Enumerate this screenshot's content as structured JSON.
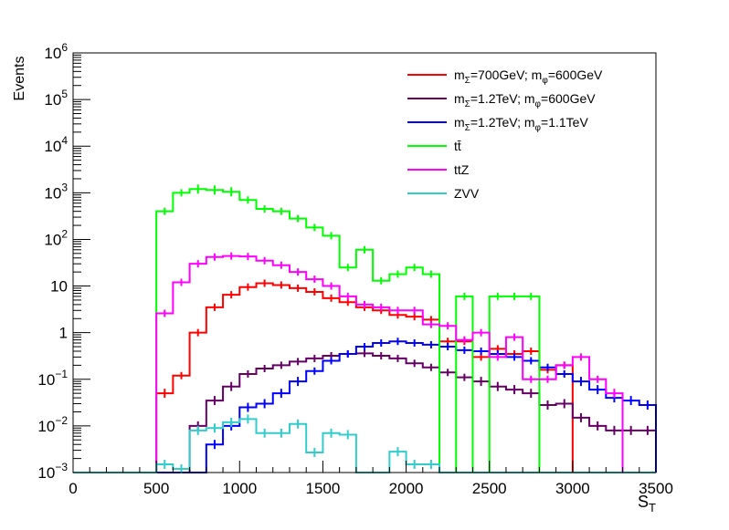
{
  "chart_data": {
    "type": "line",
    "ylabel": "Events",
    "xlabel_main": "S",
    "xlabel_sub": "T",
    "yscale": "log",
    "xlim": [
      0,
      3500
    ],
    "ylim": [
      0.001,
      1000000
    ],
    "grid": false,
    "legend_position": "top-right",
    "x_tick_labels": [
      "0",
      "500",
      "1000",
      "1500",
      "2000",
      "2500",
      "3000",
      "3500"
    ],
    "x_tick_values": [
      0,
      500,
      1000,
      1500,
      2000,
      2500,
      3000,
      3500
    ],
    "y_tick_labels": [
      {
        "value": 0.001,
        "base": "10",
        "sup": "−3"
      },
      {
        "value": 0.01,
        "base": "10",
        "sup": "−2"
      },
      {
        "value": 0.1,
        "base": "10",
        "sup": "−1"
      },
      {
        "value": 1,
        "base": "1",
        "sup": ""
      },
      {
        "value": 10,
        "base": "10",
        "sup": ""
      },
      {
        "value": 100,
        "base": "10",
        "sup": "2"
      },
      {
        "value": 1000,
        "base": "10",
        "sup": "3"
      },
      {
        "value": 10000,
        "base": "10",
        "sup": "4"
      },
      {
        "value": 100000,
        "base": "10",
        "sup": "5"
      },
      {
        "value": 1000000,
        "base": "10",
        "sup": "6"
      }
    ],
    "bin_width": 100,
    "bin_starts": [
      500,
      600,
      700,
      800,
      900,
      1000,
      1100,
      1200,
      1300,
      1400,
      1500,
      1600,
      1700,
      1800,
      1900,
      2000,
      2100,
      2200,
      2300,
      2400,
      2500,
      2600,
      2700,
      2800,
      2900,
      3000,
      3100,
      3200,
      3300,
      3400
    ],
    "series": [
      {
        "name": "mΣ=700GeV; mφ=600GeV",
        "legend_parts": [
          [
            "m",
            ""
          ],
          [
            "Σ",
            "sub"
          ],
          [
            "=700GeV; m",
            ""
          ],
          [
            "φ",
            "sub"
          ],
          [
            "=600GeV",
            ""
          ]
        ],
        "color": "#ff0000",
        "values": [
          0.05,
          0.12,
          1.0,
          3.5,
          6.5,
          9.5,
          11.5,
          10.5,
          9.0,
          7.5,
          5.5,
          4.5,
          3.5,
          3.0,
          2.4,
          2.2,
          1.9,
          0.65,
          0.65,
          0.3,
          0.45,
          0.35,
          0.4,
          0.16,
          0.2,
          0.001,
          0.001,
          0.001,
          0.001,
          0.001
        ]
      },
      {
        "name": "mΣ=1.2TeV; mφ=600GeV",
        "legend_parts": [
          [
            "m",
            ""
          ],
          [
            "Σ",
            "sub"
          ],
          [
            "=1.2TeV; m",
            ""
          ],
          [
            "φ",
            "sub"
          ],
          [
            "=600GeV",
            ""
          ]
        ],
        "color": "#660066",
        "values": [
          0.001,
          0.001,
          0.01,
          0.035,
          0.07,
          0.13,
          0.17,
          0.2,
          0.24,
          0.28,
          0.32,
          0.35,
          0.36,
          0.32,
          0.28,
          0.22,
          0.18,
          0.14,
          0.11,
          0.09,
          0.07,
          0.06,
          0.05,
          0.028,
          0.03,
          0.015,
          0.01,
          0.008,
          0.008,
          0.008
        ]
      },
      {
        "name": "mΣ=1.2TeV; mφ=1.1TeV",
        "legend_parts": [
          [
            "m",
            ""
          ],
          [
            "Σ",
            "sub"
          ],
          [
            "=1.2TeV; m",
            ""
          ],
          [
            "φ",
            "sub"
          ],
          [
            "=1.1TeV",
            ""
          ]
        ],
        "color": "#0000ff",
        "values": [
          0.001,
          0.001,
          0.001,
          0.004,
          0.01,
          0.025,
          0.03,
          0.05,
          0.09,
          0.15,
          0.25,
          0.35,
          0.5,
          0.6,
          0.65,
          0.6,
          0.55,
          0.5,
          0.42,
          0.4,
          0.35,
          0.3,
          0.25,
          0.18,
          0.13,
          0.09,
          0.06,
          0.04,
          0.035,
          0.028
        ]
      },
      {
        "name": "tt̄",
        "legend_parts": [
          [
            "tt̄",
            ""
          ]
        ],
        "color": "#00ff00",
        "values": [
          400,
          1000,
          1200,
          1150,
          1050,
          700,
          450,
          400,
          280,
          180,
          120,
          25,
          60,
          13,
          18,
          25,
          18,
          0.001,
          6,
          0.001,
          6,
          6,
          6,
          0.001,
          0.001,
          0.001,
          0.001,
          0.001,
          0.001,
          0.001
        ]
      },
      {
        "name": "ttZ",
        "legend_parts": [
          [
            "ttZ",
            ""
          ]
        ],
        "color": "#ff00ff",
        "values": [
          2.6,
          12,
          30,
          42,
          44,
          43,
          35,
          28,
          20,
          14,
          10,
          6,
          4,
          3.5,
          3,
          3,
          1.5,
          1.4,
          0.7,
          1,
          0.3,
          0.8,
          0.1,
          0.1,
          0.2,
          0.3,
          0.1,
          0.05,
          0.001,
          0.001
        ]
      },
      {
        "name": "ZVV",
        "legend_parts": [
          [
            "ZVV",
            ""
          ]
        ],
        "color": "#33cccc",
        "values": [
          0.0015,
          0.0012,
          0.008,
          0.009,
          0.012,
          0.014,
          0.007,
          0.007,
          0.011,
          0.0027,
          0.007,
          0.0065,
          0.001,
          0.001,
          0.0028,
          0.0015,
          0.0015,
          0.001,
          0.001,
          0.001,
          0.001,
          0.001,
          0.001,
          0.001,
          0.001,
          0.001,
          0.001,
          0.001,
          0.001,
          0.001
        ]
      }
    ]
  }
}
